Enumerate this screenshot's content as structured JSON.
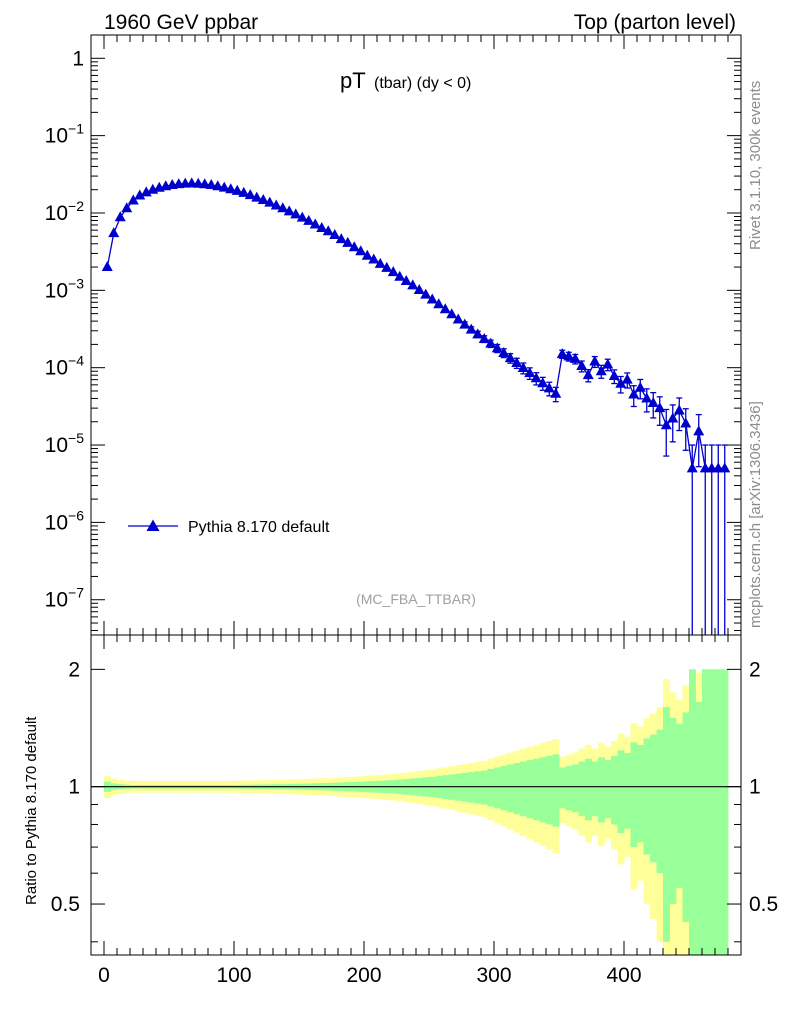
{
  "header": {
    "left": "1960 GeV ppbar",
    "right": "Top (parton level)"
  },
  "side_labels": {
    "rivet": "Rivet 3.1.10,  300k events",
    "mcplots": "mcplots.cern.ch [arXiv:1306.3436]"
  },
  "chart_data": [
    {
      "type": "line",
      "title_main": "pT",
      "title_sub": "(tbar) (dy < 0)",
      "watermark": "(MC_FBA_TTBAR)",
      "yscale": "log",
      "xlim": [
        -10,
        490
      ],
      "ylim": [
        3.5e-08,
        2.0
      ],
      "ytick_labels": [
        "1",
        "10^-1",
        "10^-2",
        "10^-3",
        "10^-4",
        "10^-5",
        "10^-6",
        "10^-7"
      ],
      "marker": "triangle-up",
      "color": "#0000cc",
      "legend": {
        "placement": "lower-left",
        "entries": [
          "Pythia 8.170 default"
        ]
      },
      "series": [
        {
          "name": "Pythia 8.170 default",
          "x": [
            2.5,
            7.5,
            12.5,
            17.5,
            22.5,
            27.5,
            32.5,
            37.5,
            42.5,
            47.5,
            52.5,
            57.5,
            62.5,
            67.5,
            72.5,
            77.5,
            82.5,
            87.5,
            92.5,
            97.5,
            102.5,
            107.5,
            112.5,
            117.5,
            122.5,
            127.5,
            132.5,
            137.5,
            142.5,
            147.5,
            152.5,
            157.5,
            162.5,
            167.5,
            172.5,
            177.5,
            182.5,
            187.5,
            192.5,
            197.5,
            202.5,
            207.5,
            212.5,
            217.5,
            222.5,
            227.5,
            232.5,
            237.5,
            242.5,
            247.5,
            252.5,
            257.5,
            262.5,
            267.5,
            272.5,
            277.5,
            282.5,
            287.5,
            292.5,
            297.5,
            302.5,
            307.5,
            312.5,
            317.5,
            322.5,
            327.5,
            332.5,
            337.5,
            342.5,
            347.5,
            352.5,
            357.5,
            362.5,
            367.5,
            372.5,
            377.5,
            382.5,
            387.5,
            392.5,
            397.5,
            402.5,
            407.5,
            412.5,
            417.5,
            422.5,
            427.5,
            432.5,
            437.5,
            442.5,
            447.5,
            452.5,
            457.5,
            462.5,
            467.5,
            472.5,
            477.5
          ],
          "y": [
            0.002,
            0.0055,
            0.0088,
            0.0115,
            0.0145,
            0.0168,
            0.0185,
            0.02,
            0.0212,
            0.0222,
            0.023,
            0.0236,
            0.024,
            0.0241,
            0.0239,
            0.0235,
            0.023,
            0.0222,
            0.0213,
            0.0203,
            0.0193,
            0.0182,
            0.017,
            0.0158,
            0.0147,
            0.0136,
            0.0125,
            0.0115,
            0.0105,
            0.0096,
            0.0087,
            0.0079,
            0.0071,
            0.0064,
            0.0058,
            0.0052,
            0.0046,
            0.0041,
            0.0036,
            0.0032,
            0.0028,
            0.0025,
            0.0022,
            0.00195,
            0.00172,
            0.0015,
            0.00132,
            0.00116,
            0.00101,
            0.00088,
            0.00076,
            0.00066,
            0.00057,
            0.00049,
            0.00042,
            0.00036,
            0.00031,
            0.00027,
            0.000235,
            0.000205,
            0.000178,
            0.000155,
            0.000133,
            0.000115,
            9.9e-05,
            8.5e-05,
            7.3e-05,
            6.3e-05,
            5.4e-05,
            4.6e-05,
            0.00015,
            0.00014,
            0.00013,
            0.000105,
            8e-05,
            0.00012,
            9e-05,
            0.00011,
            7.8e-05,
            6.2e-05,
            7e-05,
            4.5e-05,
            5.5e-05,
            4e-05,
            3.5e-05,
            3e-05,
            1.8e-05,
            2.2e-05,
            2.8e-05,
            1.9e-05,
            5e-06,
            1.5e-05,
            5e-06,
            5e-06,
            5e-06,
            5e-06
          ],
          "yerr_rel": [
            0.03,
            0.02,
            0.015,
            0.012,
            0.01,
            0.01,
            0.01,
            0.01,
            0.01,
            0.01,
            0.01,
            0.01,
            0.01,
            0.01,
            0.01,
            0.01,
            0.01,
            0.01,
            0.01,
            0.01,
            0.011,
            0.012,
            0.012,
            0.013,
            0.013,
            0.014,
            0.015,
            0.015,
            0.016,
            0.017,
            0.018,
            0.019,
            0.02,
            0.021,
            0.022,
            0.024,
            0.025,
            0.027,
            0.028,
            0.03,
            0.032,
            0.034,
            0.036,
            0.038,
            0.04,
            0.043,
            0.046,
            0.05,
            0.053,
            0.057,
            0.06,
            0.065,
            0.07,
            0.075,
            0.08,
            0.085,
            0.09,
            0.095,
            0.1,
            0.11,
            0.12,
            0.13,
            0.14,
            0.15,
            0.16,
            0.17,
            0.18,
            0.19,
            0.2,
            0.21,
            0.12,
            0.13,
            0.14,
            0.16,
            0.18,
            0.16,
            0.19,
            0.17,
            0.2,
            0.24,
            0.22,
            0.3,
            0.28,
            0.33,
            0.36,
            0.4,
            0.6,
            0.5,
            0.45,
            0.55,
            1.0,
            0.65,
            1.0,
            1.0,
            1.0,
            1.0
          ]
        }
      ]
    },
    {
      "type": "area",
      "ylabel": "Ratio to Pythia 8.170 default",
      "yscale": "log",
      "xlim": [
        -10,
        490
      ],
      "ylim": [
        0.37,
        2.45
      ],
      "xtick_labels": [
        "0",
        "100",
        "200",
        "300",
        "400"
      ],
      "ytick_labels": [
        "0.5",
        "1",
        "2"
      ],
      "reference_line": 1,
      "bands": [
        {
          "name": "stat. uncertainty",
          "color": "#99ff99"
        },
        {
          "name": "total uncertainty",
          "color": "#ffff99"
        }
      ]
    }
  ]
}
